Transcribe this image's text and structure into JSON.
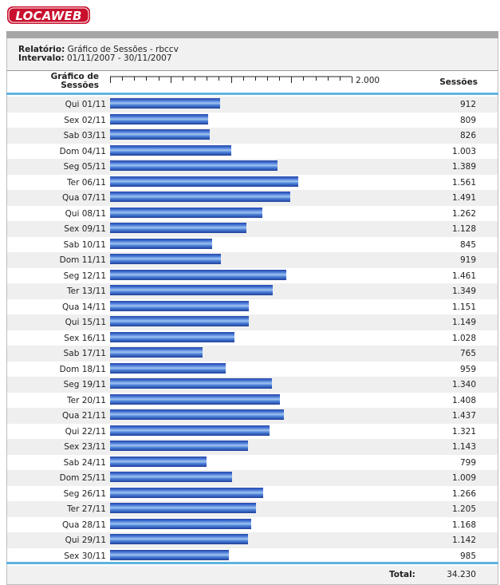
{
  "brand": {
    "logo_text": "LOCAWEB",
    "logo_color": "#c8102e"
  },
  "report": {
    "report_label": "Relatório:",
    "report_value": "Gráfico de Sessões - rbccv",
    "interval_label": "Intervalo:",
    "interval_value": "01/11/2007 - 30/11/2007"
  },
  "table": {
    "col_chart_line1": "Gráfico de",
    "col_chart_line2": "Sessões",
    "col_sessions": "Sessões",
    "scale_max_label": "2.000",
    "total_label": "Total:",
    "total_value": "34.230"
  },
  "colors": {
    "accent_line": "#5fb3df",
    "bar": "#3f6fd2",
    "header_bar": "#a6a6a6"
  },
  "chart_data": {
    "type": "bar",
    "orientation": "horizontal",
    "x_range": [
      0,
      2000
    ],
    "categories": [
      "Qui 01/11",
      "Sex 02/11",
      "Sab 03/11",
      "Dom 04/11",
      "Seg 05/11",
      "Ter 06/11",
      "Qua 07/11",
      "Qui 08/11",
      "Sex 09/11",
      "Sab 10/11",
      "Dom 11/11",
      "Seg 12/11",
      "Ter 13/11",
      "Qua 14/11",
      "Qui 15/11",
      "Sex 16/11",
      "Sab 17/11",
      "Dom 18/11",
      "Seg 19/11",
      "Ter 20/11",
      "Qua 21/11",
      "Qui 22/11",
      "Sex 23/11",
      "Sab 24/11",
      "Dom 25/11",
      "Seg 26/11",
      "Ter 27/11",
      "Qua 28/11",
      "Qui 29/11",
      "Sex 30/11"
    ],
    "values": [
      912,
      809,
      826,
      1003,
      1389,
      1561,
      1491,
      1262,
      1128,
      845,
      919,
      1461,
      1349,
      1151,
      1149,
      1028,
      765,
      959,
      1340,
      1408,
      1437,
      1321,
      1143,
      799,
      1009,
      1266,
      1205,
      1168,
      1142,
      985
    ],
    "value_labels": [
      "912",
      "809",
      "826",
      "1.003",
      "1.389",
      "1.561",
      "1.491",
      "1.262",
      "1.128",
      "845",
      "919",
      "1.461",
      "1.349",
      "1.151",
      "1.149",
      "1.028",
      "765",
      "959",
      "1.340",
      "1.408",
      "1.437",
      "1.321",
      "1.143",
      "799",
      "1.009",
      "1.266",
      "1.205",
      "1.168",
      "1.142",
      "985"
    ]
  }
}
